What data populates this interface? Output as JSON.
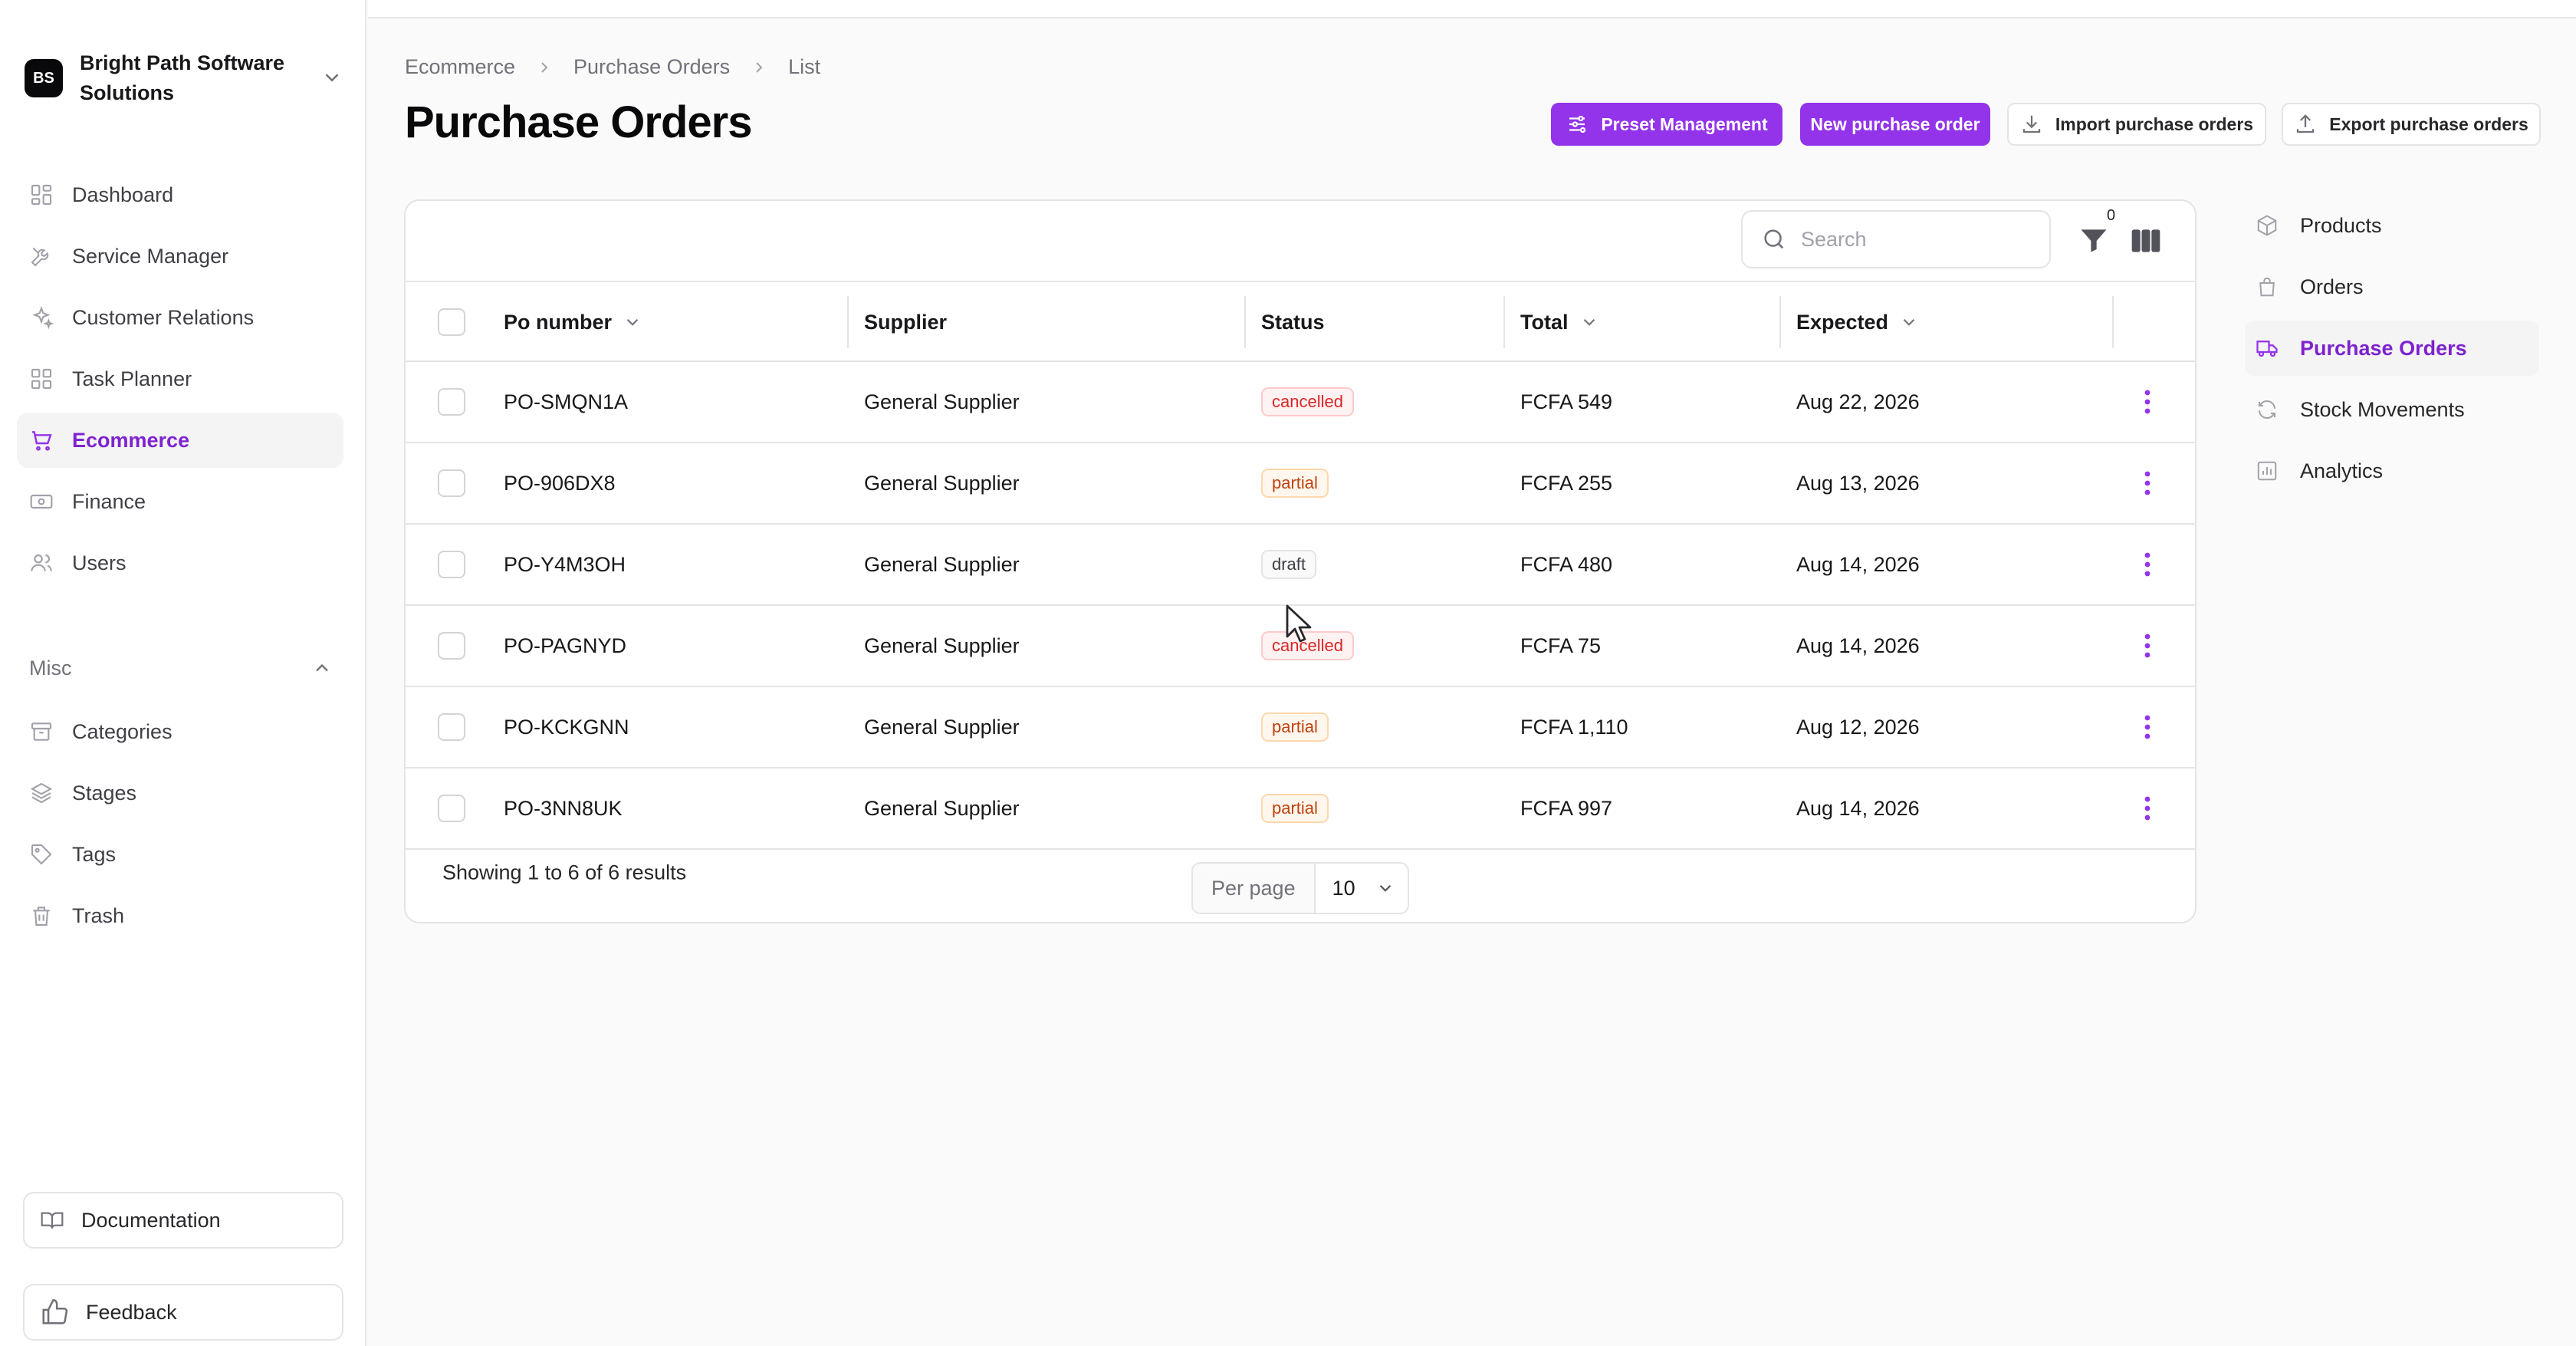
{
  "org": {
    "logo": "BS",
    "name": "Bright Path Software Solutions"
  },
  "sidebar": {
    "items": [
      {
        "label": "Dashboard",
        "icon": "dashboard-icon",
        "active": false
      },
      {
        "label": "Service Manager",
        "icon": "wrench-icon",
        "active": false
      },
      {
        "label": "Customer Relations",
        "icon": "sparkles-icon",
        "active": false
      },
      {
        "label": "Task Planner",
        "icon": "grid-icon",
        "active": false
      },
      {
        "label": "Ecommerce",
        "icon": "cart-icon",
        "active": true
      },
      {
        "label": "Finance",
        "icon": "banknote-icon",
        "active": false
      },
      {
        "label": "Users",
        "icon": "users-icon",
        "active": false
      }
    ],
    "misc_label": "Misc",
    "misc_items": [
      {
        "label": "Categories",
        "icon": "archive-icon"
      },
      {
        "label": "Stages",
        "icon": "layers-icon"
      },
      {
        "label": "Tags",
        "icon": "tag-icon"
      },
      {
        "label": "Trash",
        "icon": "trash-icon"
      }
    ],
    "documentation_label": "Documentation",
    "feedback_label": "Feedback"
  },
  "breadcrumb": [
    "Ecommerce",
    "Purchase Orders",
    "List"
  ],
  "page_title": "Purchase Orders",
  "actions": {
    "preset": "Preset Management",
    "new": "New purchase order",
    "import": "Import purchase orders",
    "export": "Export purchase orders"
  },
  "search": {
    "placeholder": "Search",
    "value": ""
  },
  "filter_count": "0",
  "table": {
    "columns": {
      "po_number": "Po number",
      "supplier": "Supplier",
      "status": "Status",
      "total": "Total",
      "expected": "Expected"
    },
    "rows": [
      {
        "po_number": "PO-SMQN1A",
        "supplier": "General Supplier",
        "status": "cancelled",
        "total": "FCFA 549",
        "expected": "Aug 22, 2026"
      },
      {
        "po_number": "PO-906DX8",
        "supplier": "General Supplier",
        "status": "partial",
        "total": "FCFA 255",
        "expected": "Aug 13, 2026"
      },
      {
        "po_number": "PO-Y4M3OH",
        "supplier": "General Supplier",
        "status": "draft",
        "total": "FCFA 480",
        "expected": "Aug 14, 2026"
      },
      {
        "po_number": "PO-PAGNYD",
        "supplier": "General Supplier",
        "status": "cancelled",
        "total": "FCFA 75",
        "expected": "Aug 14, 2026"
      },
      {
        "po_number": "PO-KCKGNN",
        "supplier": "General Supplier",
        "status": "partial",
        "total": "FCFA 1,110",
        "expected": "Aug 12, 2026"
      },
      {
        "po_number": "PO-3NN8UK",
        "supplier": "General Supplier",
        "status": "partial",
        "total": "FCFA 997",
        "expected": "Aug 14, 2026"
      }
    ]
  },
  "pagination": {
    "summary": "Showing 1 to 6 of 6 results",
    "per_page_label": "Per page",
    "per_page_value": "10"
  },
  "subnav": [
    {
      "label": "Products",
      "icon": "box-icon",
      "active": false
    },
    {
      "label": "Orders",
      "icon": "bag-icon",
      "active": false
    },
    {
      "label": "Purchase Orders",
      "icon": "truck-icon",
      "active": true
    },
    {
      "label": "Stock Movements",
      "icon": "refresh-icon",
      "active": false
    },
    {
      "label": "Analytics",
      "icon": "chart-icon",
      "active": false
    }
  ],
  "colors": {
    "accent": "#9333ea",
    "accent_text": "#7e22ce",
    "cancelled": "#dc2626",
    "partial": "#c2410c",
    "draft": "#3f3f46"
  }
}
